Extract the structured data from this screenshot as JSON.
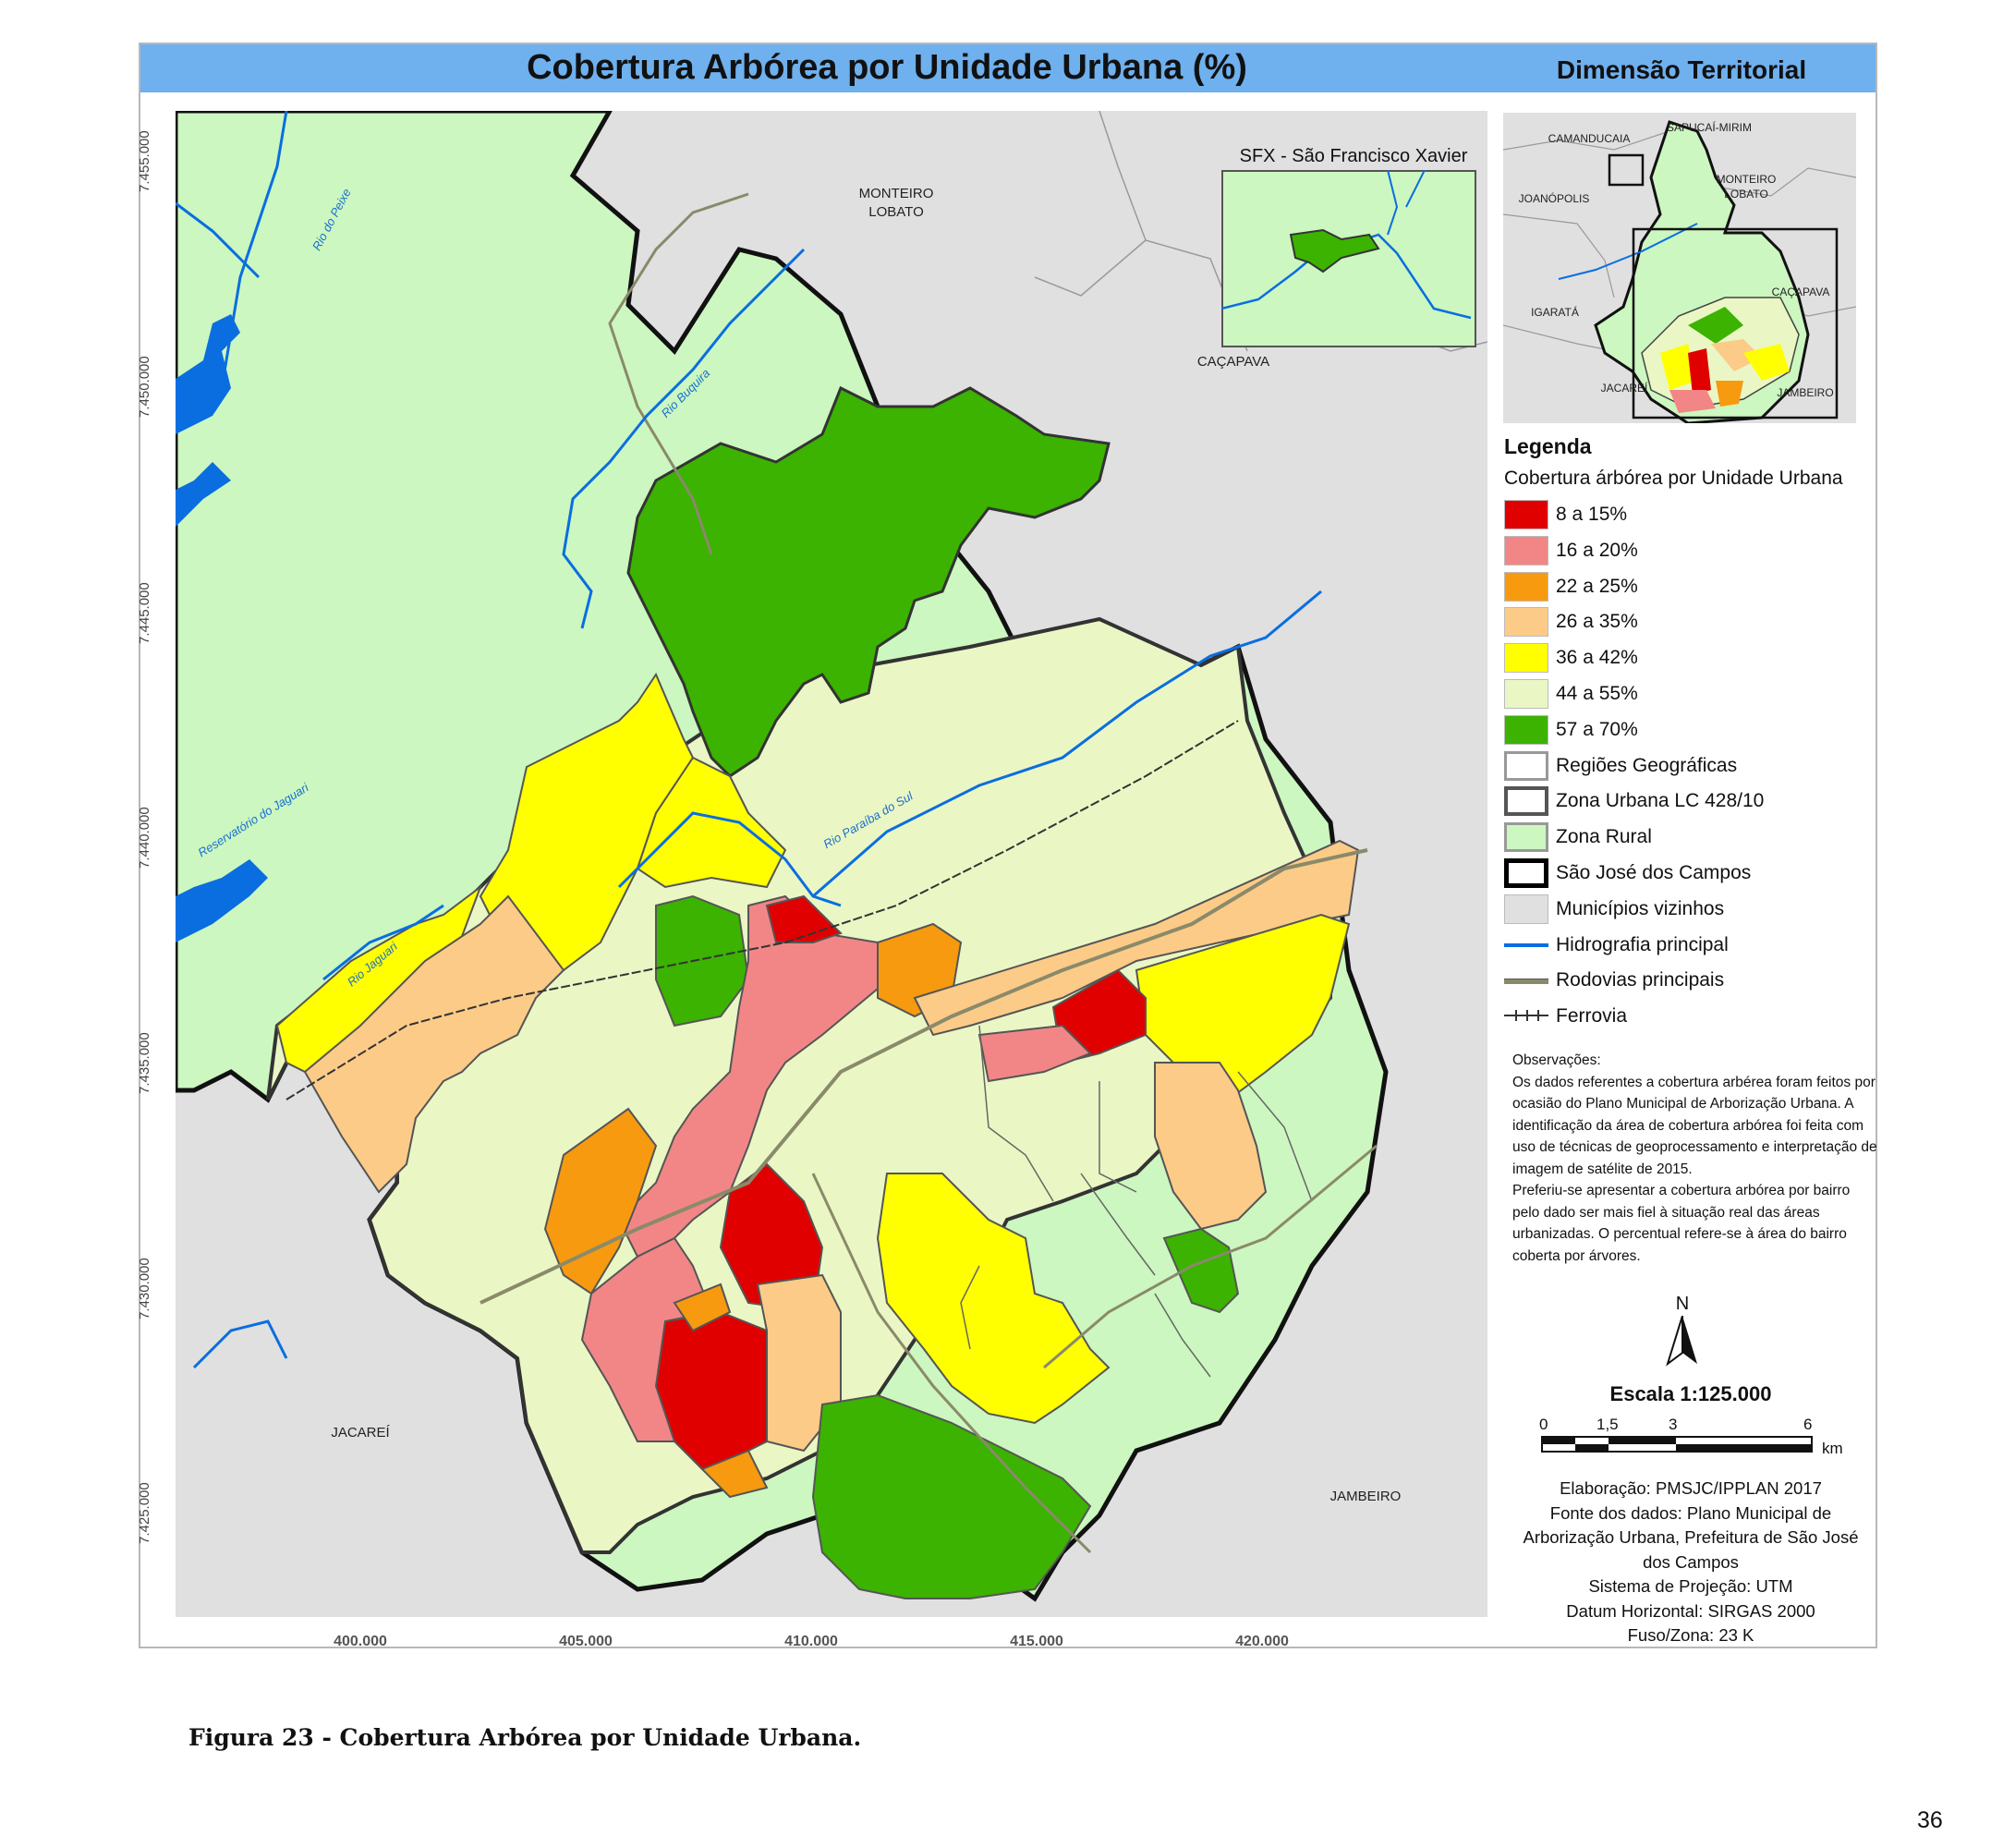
{
  "title": "Cobertura Arbórea por Unidade Urbana (%)",
  "dimension": "Dimensão Territorial",
  "inset_sfx_title": "SFX - São Francisco Xavier",
  "map_labels": {
    "monteiro_lobato": "MONTEIRO\nLOBATO",
    "cacapava": "CAÇAPAVA",
    "jacarei": "JACAREÍ",
    "jambeiro": "JAMBEIRO"
  },
  "river_labels": {
    "rio_do_peixe": "Rio do Peixe",
    "rio_buquira": "Rio Buquira",
    "reservatorio": "Reservatório do Jaguari",
    "rio_jaguari": "Rio Jaguari",
    "rio_paraiba": "Rio Paraíba do Sul"
  },
  "inset_labels": {
    "sao_mirim": "SAPUCAÍ-MIRIM",
    "camanducaia": "CAMANDUCAIA",
    "joanopolis": "JOANÓPOLIS",
    "monteiro_lobato": "MONTEIRO\nLOBATO",
    "igarata": "IGARATÁ",
    "cacapava": "CAÇAPAVA",
    "jacarei": "JACAREÍ",
    "jambeiro": "JAMBEIRO"
  },
  "y_ticks": [
    "7.455.000",
    "7.450.000",
    "7.445.000",
    "7.440.000",
    "7.435.000",
    "7.430.000",
    "7.425.000"
  ],
  "x_ticks": [
    "400.000",
    "405.000",
    "410.000",
    "415.000",
    "420.000"
  ],
  "legend": {
    "title": "Legenda",
    "subtitle": "Cobertura árbórea por Unidade Urbana",
    "items": [
      {
        "label": "8 a 15%",
        "color": "#e00000",
        "type": "fill"
      },
      {
        "label": "16 a 20%",
        "color": "#f28686",
        "type": "fill"
      },
      {
        "label": "22 a 25%",
        "color": "#f79a0f",
        "type": "fill"
      },
      {
        "label": "26 a 35%",
        "color": "#fccb88",
        "type": "fill"
      },
      {
        "label": "36 a 42%",
        "color": "#ffff00",
        "type": "fill"
      },
      {
        "label": "44 a 55%",
        "color": "#eaf7c4",
        "type": "fill"
      },
      {
        "label": "57 a 70%",
        "color": "#3bb300",
        "type": "fill"
      },
      {
        "label": "Regiões Geográficas",
        "color": "#ffffff",
        "type": "outline-grey"
      },
      {
        "label": "Zona Urbana LC 428/10",
        "color": "#ffffff",
        "type": "outline-dark"
      },
      {
        "label": "Zona Rural",
        "color": "#ccf7c0",
        "type": "outline-grey"
      },
      {
        "label": "São José dos Campos",
        "color": "#ffffff",
        "type": "outline-black"
      },
      {
        "label": "Municípios vizinhos",
        "color": "#e0e0e0",
        "type": "fill"
      },
      {
        "label": "Hidrografia principal",
        "color": "#0a6ee0",
        "type": "line-blue"
      },
      {
        "label": "Rodovias principais",
        "color": "#8a8a6a",
        "type": "line-road"
      },
      {
        "label": "Ferrovia",
        "color": "#333333",
        "type": "line-rail"
      }
    ]
  },
  "observacoes": "Observações:\nOs dados referentes a cobertura arbérea foram feitos por ocasião do Plano Municipal de Arborização Urbana. A identificação da área de cobertura arbórea foi feita com uso de técnicas de geoprocessamento e interpretação de imagem de satélite de 2015.\nPreferiu-se apresentar a cobertura arbórea por bairro pelo dado ser mais fiel à situação real das áreas urbanizadas. O percentual refere-se à área do bairro coberta por árvores.",
  "north": "N",
  "scale": {
    "title": "Escala 1:125.000",
    "ticks": [
      "0",
      "1,5",
      "3",
      "6"
    ],
    "unit": "km"
  },
  "credits": "Elaboração: PMSJC/IPPLAN 2017\nFonte dos dados: Plano Municipal de Arborização Urbana, Prefeitura de São José dos Campos\nSistema de Projeção: UTM\nDatum Horizontal: SIRGAS 2000\nFuso/Zona: 23 K",
  "caption": "Figura 23 - Cobertura Arbórea por Unidade Urbana.",
  "page_number": "36"
}
